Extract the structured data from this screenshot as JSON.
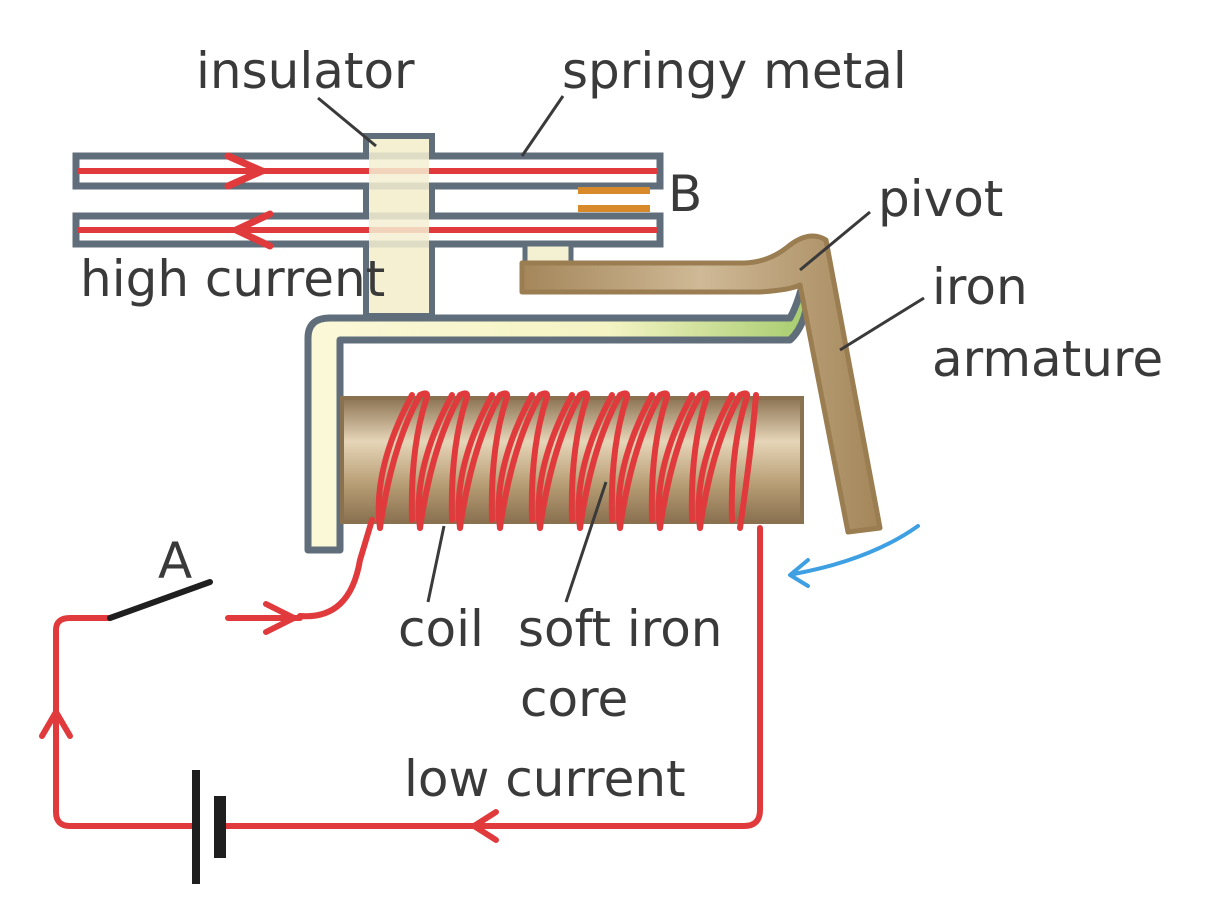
{
  "labels": {
    "insulator": "insulator",
    "springy_metal": "springy metal",
    "B": "B",
    "pivot": "pivot",
    "iron": "iron",
    "armature": "armature",
    "high_current": "high current",
    "A": "A",
    "coil": "coil",
    "soft_iron": "soft iron",
    "core": "core",
    "low_current": "low current"
  },
  "colors": {
    "wire": "#e13a3d",
    "metal_strip": "#5f6e7a",
    "insulator_fill": "#f4f0d2",
    "contact": "#d88a2a",
    "iron": "#b79d74",
    "yoke_light": "#fbf9de",
    "yoke_green": "#a7cc6e",
    "motion_arrow": "#3ea0e3"
  }
}
